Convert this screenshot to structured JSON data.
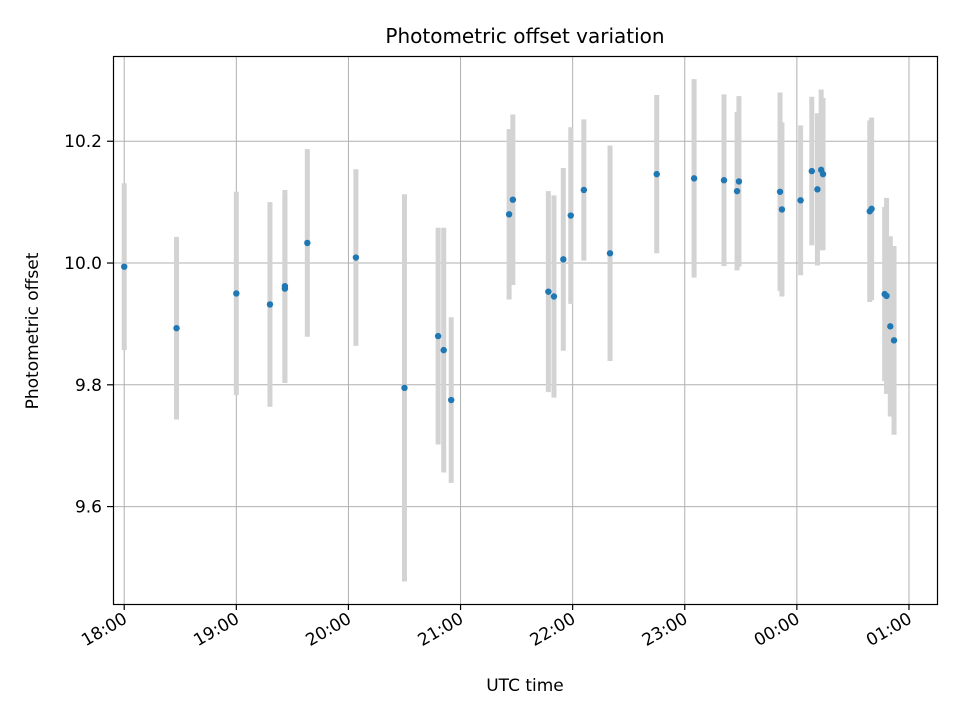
{
  "chart_data": {
    "type": "scatter",
    "title": "Photometric offset variation",
    "xlabel": "UTC time",
    "ylabel": "Photometric offset",
    "grid": true,
    "x_ticks": [
      "18:00",
      "19:00",
      "20:00",
      "21:00",
      "22:00",
      "23:00",
      "00:00",
      "01:00"
    ],
    "y_ticks": [
      "9.6",
      "9.8",
      "10.0",
      "10.2"
    ],
    "xlim": [
      "17:54",
      "01:15"
    ],
    "ylim": [
      9.44,
      10.34
    ],
    "colors": {
      "points": "#1f77b4",
      "errorbars": "#d3d3d3",
      "grid": "#b0b0b0"
    },
    "series": [
      {
        "points": [
          {
            "x": "18:00",
            "y": 9.994,
            "yerr": 0.137
          },
          {
            "x": "18:28",
            "y": 9.893,
            "yerr": 0.15
          },
          {
            "x": "19:00",
            "y": 9.95,
            "yerr": 0.167
          },
          {
            "x": "19:18",
            "y": 9.932,
            "yerr": 0.168
          },
          {
            "x": "19:26",
            "y": 9.962,
            "yerr": 0.158
          },
          {
            "x": "19:26",
            "y": 9.958,
            "yerr": 0.155
          },
          {
            "x": "19:38",
            "y": 10.033,
            "yerr": 0.154
          },
          {
            "x": "20:04",
            "y": 10.009,
            "yerr": 0.145
          },
          {
            "x": "20:30",
            "y": 9.795,
            "yerr": 0.318
          },
          {
            "x": "20:48",
            "y": 9.88,
            "yerr": 0.178
          },
          {
            "x": "20:51",
            "y": 9.857,
            "yerr": 0.201
          },
          {
            "x": "20:55",
            "y": 9.775,
            "yerr": 0.136
          },
          {
            "x": "21:26",
            "y": 10.08,
            "yerr": 0.14
          },
          {
            "x": "21:28",
            "y": 10.104,
            "yerr": 0.14
          },
          {
            "x": "21:47",
            "y": 9.953,
            "yerr": 0.165
          },
          {
            "x": "21:50",
            "y": 9.945,
            "yerr": 0.166
          },
          {
            "x": "21:55",
            "y": 10.006,
            "yerr": 0.15
          },
          {
            "x": "21:59",
            "y": 10.078,
            "yerr": 0.145
          },
          {
            "x": "22:06",
            "y": 10.12,
            "yerr": 0.116
          },
          {
            "x": "22:20",
            "y": 10.016,
            "yerr": 0.177
          },
          {
            "x": "22:45",
            "y": 10.146,
            "yerr": 0.13
          },
          {
            "x": "23:05",
            "y": 10.139,
            "yerr": 0.163
          },
          {
            "x": "23:21",
            "y": 10.136,
            "yerr": 0.141
          },
          {
            "x": "23:28",
            "y": 10.118,
            "yerr": 0.13
          },
          {
            "x": "23:29",
            "y": 10.134,
            "yerr": 0.14
          },
          {
            "x": "23:51",
            "y": 10.117,
            "yerr": 0.163
          },
          {
            "x": "23:52",
            "y": 10.088,
            "yerr": 0.143
          },
          {
            "x": "00:02",
            "y": 10.103,
            "yerr": 0.123
          },
          {
            "x": "00:08",
            "y": 10.151,
            "yerr": 0.122
          },
          {
            "x": "00:11",
            "y": 10.121,
            "yerr": 0.125
          },
          {
            "x": "00:13",
            "y": 10.153,
            "yerr": 0.132
          },
          {
            "x": "00:14",
            "y": 10.146,
            "yerr": 0.125
          },
          {
            "x": "00:39",
            "y": 10.085,
            "yerr": 0.149
          },
          {
            "x": "00:40",
            "y": 10.089,
            "yerr": 0.15
          },
          {
            "x": "00:47",
            "y": 9.949,
            "yerr": 0.143
          },
          {
            "x": "00:48",
            "y": 9.946,
            "yerr": 0.161
          },
          {
            "x": "00:50",
            "y": 9.896,
            "yerr": 0.148
          },
          {
            "x": "00:52",
            "y": 9.873,
            "yerr": 0.155
          }
        ]
      }
    ]
  }
}
